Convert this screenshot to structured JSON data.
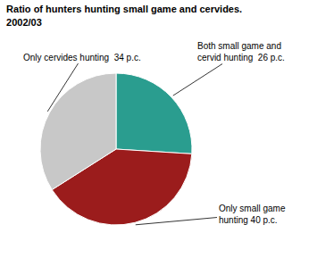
{
  "chart_data": {
    "type": "pie",
    "title": "Ratio of hunters hunting small game and cervides.",
    "subtitle": "2002/03",
    "categories": [
      "Both small game and\ncervid hunting  26 p.c.",
      "Only small game\nhunting 40 p.c.",
      "Only cervides hunting  34 p.c."
    ],
    "values": [
      26,
      40,
      34
    ],
    "colors": [
      "#2a9d8f",
      "#9b1c1c",
      "#c8c8c8"
    ]
  }
}
